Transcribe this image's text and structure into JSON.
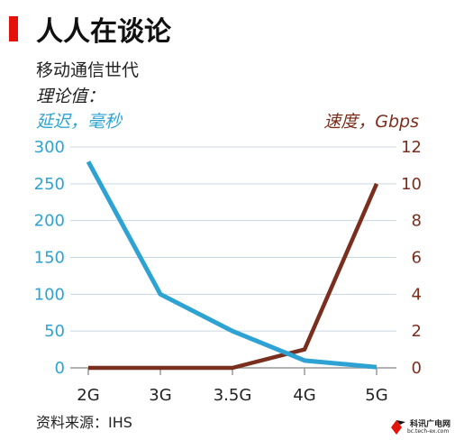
{
  "colors": {
    "accent_red": "#e3120b",
    "latency_blue": "#2ea3d3",
    "speed_brown": "#7a2e1d",
    "grid": "#c8d6e0"
  },
  "header": {
    "title": "人人在谈论",
    "subtitle": "移动通信世代",
    "note": "理论值："
  },
  "source": "资料来源：IHS",
  "logo": {
    "line1": "科讯广电网",
    "line2": "bc.tech-ex.com"
  },
  "chart_data": {
    "type": "line",
    "categories": [
      "2G",
      "3G",
      "3.5G",
      "4G",
      "5G"
    ],
    "series": [
      {
        "name": "延迟，毫秒",
        "axis": "left",
        "values": [
          280,
          100,
          50,
          10,
          1
        ]
      },
      {
        "name": "速度，Gbps",
        "axis": "right",
        "values": [
          0,
          0,
          0,
          1,
          10
        ]
      }
    ],
    "ylabel_left": "延迟，毫秒",
    "ylabel_right": "速度，Gbps",
    "ylim_left": [
      0,
      300
    ],
    "ylim_right": [
      0,
      12
    ],
    "yticks_left": [
      0,
      50,
      100,
      150,
      200,
      250,
      300
    ],
    "yticks_right": [
      0,
      2,
      4,
      6,
      8,
      10,
      12
    ],
    "grid": true
  }
}
